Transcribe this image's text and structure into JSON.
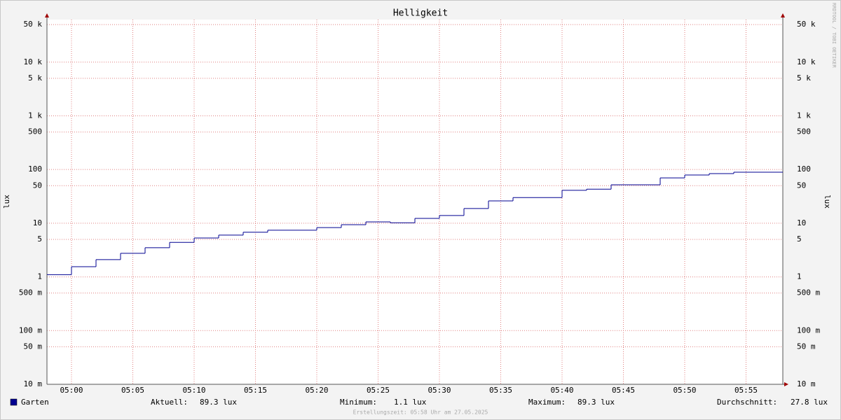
{
  "chart_data": {
    "type": "step-line",
    "title": "Helligkeit",
    "y_label": "lux",
    "watermark": "RRDTOOL / TOBI OETIKER",
    "log_y": true,
    "grid": true,
    "xlim": [
      298,
      358
    ],
    "xticks": [
      {
        "value": 300,
        "label": "05:00"
      },
      {
        "value": 305,
        "label": "05:05"
      },
      {
        "value": 310,
        "label": "05:10"
      },
      {
        "value": 315,
        "label": "05:15"
      },
      {
        "value": 320,
        "label": "05:20"
      },
      {
        "value": 325,
        "label": "05:25"
      },
      {
        "value": 330,
        "label": "05:30"
      },
      {
        "value": 335,
        "label": "05:35"
      },
      {
        "value": 340,
        "label": "05:40"
      },
      {
        "value": 345,
        "label": "05:45"
      },
      {
        "value": 350,
        "label": "05:50"
      },
      {
        "value": 355,
        "label": "05:55"
      }
    ],
    "ylim": [
      0.01,
      62000
    ],
    "yticks": [
      {
        "value": 0.01,
        "label": "10 m"
      },
      {
        "value": 0.05,
        "label": "50 m"
      },
      {
        "value": 0.1,
        "label": "100 m"
      },
      {
        "value": 0.5,
        "label": "500 m"
      },
      1,
      5,
      10,
      50,
      100,
      500,
      {
        "value": 1000,
        "label": "1 k"
      },
      {
        "value": 5000,
        "label": "5 k"
      },
      {
        "value": 10000,
        "label": "10 k"
      },
      {
        "value": 50000,
        "label": "50 k"
      }
    ],
    "x": [
      298,
      300,
      302,
      304,
      306,
      308,
      310,
      312,
      314,
      316,
      320,
      322,
      324,
      326,
      328,
      330,
      332,
      334,
      336,
      340,
      342,
      344,
      348,
      350,
      352,
      354
    ],
    "series": [
      {
        "name": "Garten",
        "color": "#000090",
        "values": [
          1.1,
          1.55,
          2.1,
          2.75,
          3.5,
          4.4,
          5.3,
          6.0,
          6.8,
          7.4,
          8.3,
          9.4,
          10.6,
          10.2,
          12.3,
          13.9,
          18.8,
          26,
          30,
          41,
          43,
          52,
          70,
          79,
          84,
          89.3
        ]
      }
    ],
    "stats": [
      {
        "label": "Aktuell:",
        "text": "89.3 lux"
      },
      {
        "label": "Minimum:",
        "text": "1.1 lux"
      },
      {
        "label": "Maximum:",
        "text": "89.3 lux"
      },
      {
        "label": "Durchschnitt:",
        "text": "27.8 lux"
      }
    ],
    "footer": "Erstellungszeit: 05:58 Uhr am 27.05.2025"
  }
}
